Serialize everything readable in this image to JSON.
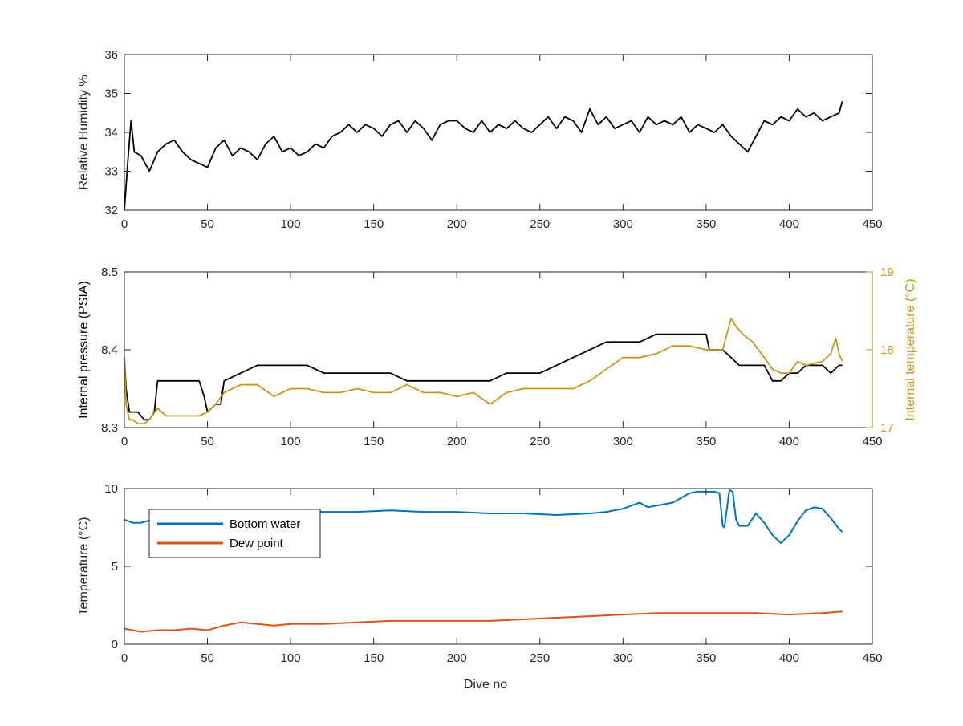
{
  "figure": {
    "xlabel": "Dive no"
  },
  "chart_data": [
    {
      "type": "line",
      "ylabel": "Relative Humidity %",
      "xlim": [
        0,
        450
      ],
      "ylim": [
        32,
        36
      ],
      "xticks": [
        0,
        50,
        100,
        150,
        200,
        250,
        300,
        350,
        400,
        450
      ],
      "yticks": [
        32,
        33,
        34,
        35,
        36
      ],
      "series": [
        {
          "color": "#000000",
          "x": [
            0,
            2,
            4,
            6,
            10,
            15,
            18,
            20,
            25,
            30,
            35,
            40,
            45,
            50,
            55,
            60,
            65,
            70,
            75,
            80,
            85,
            90,
            95,
            100,
            105,
            110,
            115,
            120,
            125,
            130,
            135,
            140,
            145,
            150,
            155,
            160,
            165,
            170,
            175,
            180,
            185,
            190,
            195,
            200,
            205,
            210,
            215,
            220,
            225,
            230,
            235,
            240,
            245,
            250,
            255,
            260,
            265,
            270,
            275,
            280,
            285,
            290,
            295,
            300,
            305,
            310,
            315,
            320,
            325,
            330,
            335,
            340,
            345,
            350,
            355,
            360,
            365,
            370,
            375,
            380,
            385,
            390,
            395,
            400,
            405,
            410,
            415,
            420,
            425,
            430,
            432
          ],
          "values": [
            32.0,
            33.2,
            34.3,
            33.5,
            33.4,
            33.0,
            33.3,
            33.5,
            33.7,
            33.8,
            33.5,
            33.3,
            33.2,
            33.1,
            33.6,
            33.8,
            33.4,
            33.6,
            33.5,
            33.3,
            33.7,
            33.9,
            33.5,
            33.6,
            33.4,
            33.5,
            33.7,
            33.6,
            33.9,
            34.0,
            34.2,
            34.0,
            34.2,
            34.1,
            33.9,
            34.2,
            34.3,
            34.0,
            34.3,
            34.1,
            33.8,
            34.2,
            34.3,
            34.3,
            34.1,
            34.0,
            34.3,
            34.0,
            34.2,
            34.1,
            34.3,
            34.1,
            34.0,
            34.2,
            34.4,
            34.1,
            34.4,
            34.3,
            34.0,
            34.6,
            34.2,
            34.4,
            34.1,
            34.2,
            34.3,
            34.0,
            34.4,
            34.2,
            34.3,
            34.2,
            34.4,
            34.0,
            34.2,
            34.1,
            34.0,
            34.2,
            33.9,
            33.7,
            33.5,
            33.9,
            34.3,
            34.2,
            34.4,
            34.3,
            34.6,
            34.4,
            34.5,
            34.3,
            34.4,
            34.5,
            34.8
          ]
        }
      ]
    },
    {
      "type": "line",
      "ylabel": "Internal pressure (PSIA)",
      "ylabel_right": "Internal temperature (°C)",
      "xlim": [
        0,
        450
      ],
      "ylim": [
        8.3,
        8.5
      ],
      "ylim_right": [
        17,
        19
      ],
      "xticks": [
        0,
        50,
        100,
        150,
        200,
        250,
        300,
        350,
        400,
        450
      ],
      "yticks": [
        8.3,
        8.4,
        8.5
      ],
      "yticks_right": [
        17,
        18,
        19
      ],
      "series": [
        {
          "color": "#000000",
          "axis": "left",
          "x": [
            0,
            1,
            3,
            5,
            8,
            12,
            15,
            18,
            20,
            25,
            30,
            35,
            40,
            45,
            48,
            50,
            55,
            58,
            60,
            70,
            80,
            90,
            100,
            110,
            120,
            130,
            140,
            150,
            160,
            170,
            180,
            190,
            200,
            210,
            220,
            230,
            240,
            250,
            260,
            270,
            280,
            290,
            300,
            310,
            320,
            330,
            340,
            350,
            352,
            355,
            360,
            365,
            370,
            375,
            380,
            385,
            390,
            395,
            400,
            405,
            410,
            420,
            425,
            430,
            432
          ],
          "values": [
            8.39,
            8.35,
            8.32,
            8.32,
            8.32,
            8.31,
            8.31,
            8.32,
            8.36,
            8.36,
            8.36,
            8.36,
            8.36,
            8.36,
            8.34,
            8.32,
            8.33,
            8.33,
            8.36,
            8.37,
            8.38,
            8.38,
            8.38,
            8.38,
            8.37,
            8.37,
            8.37,
            8.37,
            8.37,
            8.36,
            8.36,
            8.36,
            8.36,
            8.36,
            8.36,
            8.37,
            8.37,
            8.37,
            8.38,
            8.39,
            8.4,
            8.41,
            8.41,
            8.41,
            8.42,
            8.42,
            8.42,
            8.42,
            8.4,
            8.4,
            8.4,
            8.39,
            8.38,
            8.38,
            8.38,
            8.38,
            8.36,
            8.36,
            8.37,
            8.37,
            8.38,
            8.38,
            8.37,
            8.38,
            8.38
          ]
        },
        {
          "color": "#c8951e",
          "axis": "right",
          "x": [
            0,
            1,
            3,
            5,
            8,
            12,
            15,
            20,
            25,
            30,
            40,
            45,
            50,
            55,
            60,
            70,
            80,
            90,
            100,
            110,
            120,
            130,
            140,
            150,
            160,
            170,
            180,
            190,
            200,
            210,
            220,
            230,
            240,
            250,
            260,
            270,
            280,
            290,
            300,
            310,
            320,
            330,
            340,
            350,
            355,
            360,
            365,
            368,
            372,
            378,
            385,
            390,
            395,
            400,
            405,
            410,
            420,
            425,
            428,
            430,
            432
          ],
          "values": [
            17.9,
            17.3,
            17.1,
            17.1,
            17.05,
            17.05,
            17.1,
            17.25,
            17.15,
            17.15,
            17.15,
            17.15,
            17.2,
            17.3,
            17.45,
            17.55,
            17.55,
            17.4,
            17.5,
            17.5,
            17.45,
            17.45,
            17.5,
            17.45,
            17.45,
            17.55,
            17.45,
            17.45,
            17.4,
            17.45,
            17.3,
            17.45,
            17.5,
            17.5,
            17.5,
            17.5,
            17.6,
            17.75,
            17.9,
            17.9,
            17.95,
            18.05,
            18.05,
            18.0,
            18.0,
            18.0,
            18.4,
            18.3,
            18.2,
            18.1,
            17.9,
            17.75,
            17.7,
            17.7,
            17.85,
            17.8,
            17.85,
            17.95,
            18.15,
            17.95,
            17.85
          ]
        }
      ]
    },
    {
      "type": "line",
      "ylabel": "Temperature (°C)",
      "xlabel": "Dive no",
      "xlim": [
        0,
        450
      ],
      "ylim": [
        0,
        10
      ],
      "xticks": [
        0,
        50,
        100,
        150,
        200,
        250,
        300,
        350,
        400,
        450
      ],
      "yticks": [
        0,
        5,
        10
      ],
      "legend_position": "top-left",
      "series": [
        {
          "name": "Bottom water",
          "color": "#0072bd",
          "x": [
            0,
            5,
            10,
            20,
            30,
            40,
            50,
            60,
            70,
            80,
            90,
            100,
            120,
            140,
            160,
            180,
            200,
            220,
            240,
            260,
            280,
            290,
            300,
            310,
            315,
            320,
            330,
            340,
            345,
            350,
            355,
            358,
            360,
            361,
            364,
            366,
            368,
            370,
            375,
            380,
            385,
            390,
            395,
            400,
            405,
            410,
            415,
            420,
            425,
            430,
            432
          ],
          "values": [
            8.0,
            7.8,
            7.8,
            8.1,
            8.3,
            8.4,
            8.4,
            8.6,
            8.6,
            8.6,
            8.6,
            8.6,
            8.5,
            8.5,
            8.6,
            8.5,
            8.5,
            8.4,
            8.4,
            8.3,
            8.4,
            8.5,
            8.7,
            9.1,
            8.8,
            8.9,
            9.1,
            9.7,
            9.8,
            9.8,
            9.8,
            9.7,
            7.6,
            7.5,
            9.9,
            9.8,
            8.0,
            7.6,
            7.6,
            8.4,
            7.8,
            7.0,
            6.5,
            7.0,
            7.9,
            8.6,
            8.8,
            8.7,
            8.1,
            7.4,
            7.2
          ]
        },
        {
          "name": "Dew point",
          "color": "#d95319",
          "x": [
            0,
            10,
            20,
            30,
            40,
            50,
            60,
            70,
            80,
            90,
            100,
            120,
            140,
            160,
            180,
            200,
            220,
            240,
            260,
            280,
            300,
            320,
            340,
            360,
            380,
            400,
            420,
            432
          ],
          "values": [
            1.0,
            0.8,
            0.9,
            0.9,
            1.0,
            0.9,
            1.2,
            1.4,
            1.3,
            1.2,
            1.3,
            1.3,
            1.4,
            1.5,
            1.5,
            1.5,
            1.5,
            1.6,
            1.7,
            1.8,
            1.9,
            2.0,
            2.0,
            2.0,
            2.0,
            1.9,
            2.0,
            2.1
          ]
        }
      ]
    }
  ]
}
